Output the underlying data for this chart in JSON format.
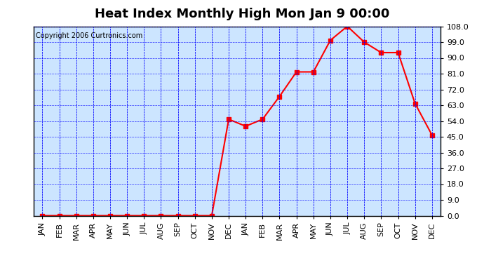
{
  "title": "Heat Index Monthly High Mon Jan 9 00:00",
  "copyright": "Copyright 2006 Curtronics.com",
  "x_labels": [
    "JAN",
    "FEB",
    "MAR",
    "APR",
    "MAY",
    "JUN",
    "JUL",
    "AUG",
    "SEP",
    "OCT",
    "NOV",
    "DEC",
    "JAN",
    "FEB",
    "MAR",
    "APR",
    "MAY",
    "JUN",
    "JUL",
    "AUG",
    "SEP",
    "OCT",
    "NOV",
    "DEC"
  ],
  "y_values": [
    0.0,
    0.0,
    0.0,
    0.0,
    0.0,
    0.0,
    0.0,
    0.0,
    0.0,
    0.0,
    0.0,
    55.0,
    51.0,
    55.0,
    68.0,
    82.0,
    82.0,
    100.0,
    108.0,
    99.0,
    93.0,
    93.0,
    64.0,
    46.0
  ],
  "ylim": [
    0.0,
    108.0
  ],
  "yticks": [
    0.0,
    9.0,
    18.0,
    27.0,
    36.0,
    45.0,
    54.0,
    63.0,
    72.0,
    81.0,
    90.0,
    99.0,
    108.0
  ],
  "line_color": "red",
  "marker": "s",
  "marker_color": "red",
  "marker_size": 4,
  "background_color": "#cce5ff",
  "plot_bg_color": "#cce5ff",
  "outer_bg_color": "white",
  "grid_color": "blue",
  "grid_style": "--",
  "border_color": "black",
  "title_fontsize": 13,
  "tick_fontsize": 8,
  "copyright_fontsize": 7
}
